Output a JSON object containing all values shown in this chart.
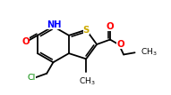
{
  "background_color": "#ffffff",
  "bond_color": "#000000",
  "bond_lw": 1.3,
  "figsize": [
    1.91,
    1.07
  ],
  "dpi": 100,
  "S_color": "#ccaa00",
  "N_color": "#0000ff",
  "O_color": "#ff0000",
  "Cl_color": "#008800",
  "C_color": "#000000",
  "xlim": [
    -1.0,
    9.5
  ],
  "ylim": [
    -1.8,
    4.2
  ]
}
